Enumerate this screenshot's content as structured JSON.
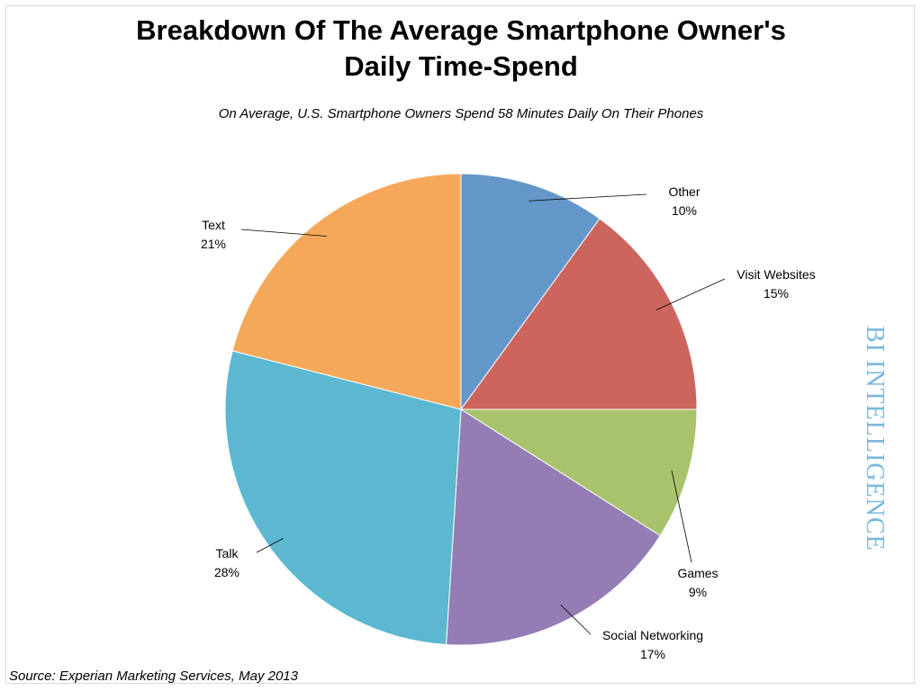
{
  "title_line1": "Breakdown Of The Average Smartphone Owner's",
  "title_line2": "Daily Time-Spend",
  "subtitle": "On Average, U.S. Smartphone Owners Spend 58 Minutes Daily On Their Phones",
  "source": "Source: Experian Marketing Services, May 2013",
  "watermark": "BI INTELLIGENCE",
  "chart_data": {
    "type": "pie",
    "title": "Breakdown Of The Average Smartphone Owner's Daily Time-Spend",
    "subtitle": "On Average, U.S. Smartphone Owners Spend 58 Minutes Daily On Their Phones",
    "start": "12 o'clock, clockwise",
    "slices": [
      {
        "label": "Other",
        "value": 10,
        "display": "10%",
        "color": "#6497c9"
      },
      {
        "label": "Visit Websites",
        "value": 15,
        "display": "15%",
        "color": "#cc655e"
      },
      {
        "label": "Games",
        "value": 9,
        "display": "9%",
        "color": "#a8c36c"
      },
      {
        "label": "Social Networking",
        "value": 17,
        "display": "17%",
        "color": "#947cb4"
      },
      {
        "label": "Talk",
        "value": 28,
        "display": "28%",
        "color": "#5bb8d0"
      },
      {
        "label": "Text",
        "value": 21,
        "display": "21%",
        "color": "#f6a85a"
      }
    ],
    "legend": "none (data labels with leader lines)"
  }
}
